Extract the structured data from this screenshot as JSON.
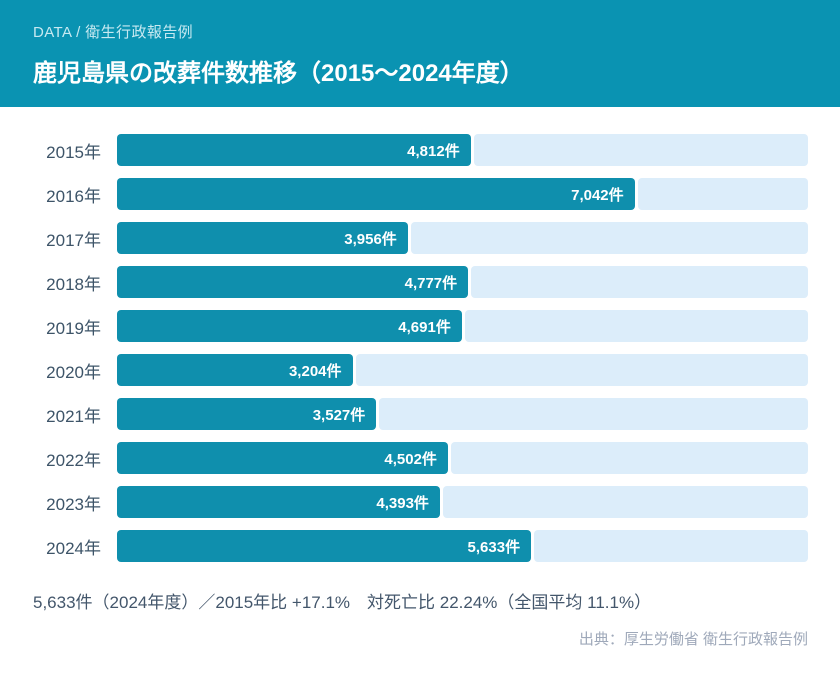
{
  "header": {
    "kicker": "DATA / 衛生行政報告例",
    "title": "鹿児島県の改葬件数推移（2015～2024年度）",
    "bg_color": "#0a93b2",
    "kicker_color": "#c7e9f1",
    "title_color": "#ffffff"
  },
  "chart_data": {
    "type": "bar",
    "orientation": "horizontal",
    "categories": [
      "2015年",
      "2016年",
      "2017年",
      "2018年",
      "2019年",
      "2020年",
      "2021年",
      "2022年",
      "2023年",
      "2024年"
    ],
    "values": [
      4812,
      7042,
      3956,
      4777,
      4691,
      3204,
      3527,
      4502,
      4393,
      5633
    ],
    "labels": [
      "4,812件",
      "7,042件",
      "3,956件",
      "4,777件",
      "4,691件",
      "3,204件",
      "3,527件",
      "4,502件",
      "4,393件",
      "5,633件"
    ],
    "xlim": [
      0,
      9400
    ],
    "grid": false,
    "legend": false,
    "bar_color": "#0f8fad",
    "track_color": "#dcedfa",
    "value_label_color": "#ffffff",
    "category_label_color": "#3d5468"
  },
  "footer": {
    "summary": "5,633件（2024年度）／2015年比 +17.1%　対死亡比 22.24%（全国平均 11.1%）",
    "source": "出典：厚生労働省 衛生行政報告例"
  }
}
